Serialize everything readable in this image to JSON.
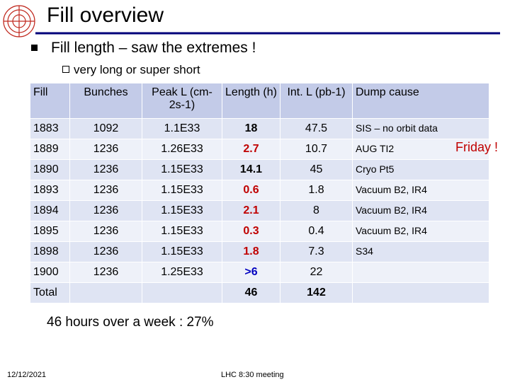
{
  "header": {
    "title": "Fill overview"
  },
  "bullets": [
    {
      "text": "Fill length – saw the extremes !",
      "sub": [
        "very long or super short"
      ]
    }
  ],
  "table": {
    "columns": [
      "Fill",
      "Bunches",
      "Peak L (cm-2s-1)",
      "Length (h)",
      "Int. L (pb-1)",
      "Dump cause"
    ],
    "rows": [
      {
        "cells": [
          "1883",
          "1092",
          "1.1E33",
          "18",
          "47.5",
          "SIS – no orbit data"
        ],
        "length_color": "#000000"
      },
      {
        "cells": [
          "1889",
          "1236",
          "1.26E33",
          "2.7",
          "10.7",
          "AUG TI2"
        ],
        "length_color": "#c00000"
      },
      {
        "cells": [
          "1890",
          "1236",
          "1.15E33",
          "14.1",
          "45",
          "Cryo Pt5"
        ],
        "length_color": "#000000"
      },
      {
        "cells": [
          "1893",
          "1236",
          "1.15E33",
          "0.6",
          "1.8",
          "Vacuum B2, IR4"
        ],
        "length_color": "#c00000"
      },
      {
        "cells": [
          "1894",
          "1236",
          "1.15E33",
          "2.1",
          "8",
          "Vacuum B2, IR4"
        ],
        "length_color": "#c00000"
      },
      {
        "cells": [
          "1895",
          "1236",
          "1.15E33",
          "0.3",
          "0.4",
          "Vacuum B2, IR4"
        ],
        "length_color": "#c00000"
      },
      {
        "cells": [
          "1898",
          "1236",
          "1.15E33",
          "1.8",
          "7.3",
          "S34"
        ],
        "length_color": "#c00000"
      },
      {
        "cells": [
          "1900",
          "1236",
          "1.25E33",
          ">6",
          "22",
          null
        ],
        "length_color": "#0000c0"
      },
      {
        "cells": [
          "Total",
          null,
          null,
          "46",
          "142",
          null
        ],
        "length_color": "#000000"
      }
    ]
  },
  "annotation": "Friday !",
  "summary": "46 hours over a week : 27%",
  "footer": {
    "date": "12/12/2021",
    "center": "LHC 8:30 meeting"
  }
}
